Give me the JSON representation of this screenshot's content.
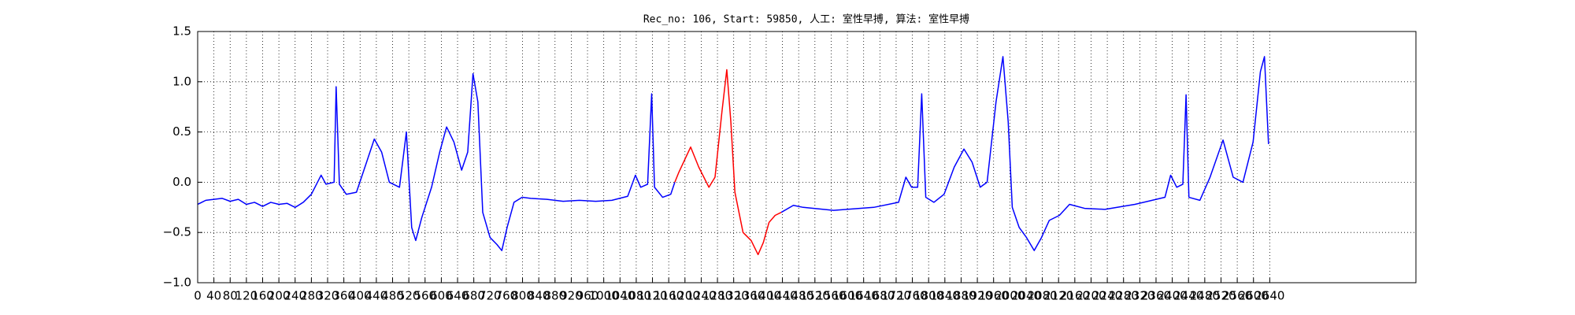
{
  "chart_data": {
    "type": "line",
    "title": "Rec_no: 106, Start: 59850, 人工: 室性早搏, 算法: 室性早搏",
    "x": [
      0,
      20,
      40,
      60,
      80,
      100,
      120,
      140,
      160,
      180,
      200,
      220,
      240,
      260,
      280,
      304,
      316,
      336,
      341,
      349,
      366,
      391,
      416,
      435,
      453,
      472,
      497,
      514,
      527,
      537,
      552,
      576,
      596,
      613,
      631,
      650,
      665,
      678,
      690,
      702,
      720,
      737,
      749,
      762,
      779,
      799,
      820,
      860,
      900,
      940,
      980,
      1020,
      1059,
      1078,
      1091,
      1108,
      1118,
      1125,
      1145,
      1165,
      1175,
      1185,
      1214,
      1234,
      1259,
      1274,
      1291,
      1303,
      1313,
      1323,
      1343,
      1363,
      1380,
      1393,
      1407,
      1422,
      1437,
      1467,
      1491,
      1566,
      1665,
      1726,
      1744,
      1758,
      1773,
      1783,
      1793,
      1813,
      1838,
      1863,
      1887,
      1907,
      1927,
      1944,
      1966,
      1983,
      1996,
      2006,
      2023,
      2041,
      2060,
      2078,
      2097,
      2122,
      2147,
      2184,
      2234,
      2308,
      2382,
      2396,
      2411,
      2426,
      2434,
      2441,
      2468,
      2493,
      2525,
      2550,
      2574,
      2599,
      2617,
      2627,
      2637
    ],
    "series": [
      {
        "color": "#0000ff",
        "values": [
          -0.22,
          -0.18,
          -0.17,
          -0.16,
          -0.19,
          -0.17,
          -0.22,
          -0.2,
          -0.24,
          -0.2,
          -0.22,
          -0.21,
          -0.25,
          -0.2,
          -0.12,
          0.07,
          -0.02,
          0,
          0.95,
          -0.02,
          -0.12,
          -0.1,
          0.2,
          0.43,
          0.3,
          0,
          -0.05,
          0.5,
          -0.45,
          -0.58,
          -0.35,
          -0.05,
          0.3,
          0.55,
          0.4,
          0.12,
          0.3,
          1.08,
          0.8,
          -0.3,
          -0.55,
          -0.62,
          -0.68,
          -0.45,
          -0.2,
          -0.15,
          -0.16,
          -0.17,
          -0.19,
          -0.18,
          -0.19,
          -0.18,
          -0.14,
          0.07,
          -0.05,
          -0.02,
          0.88,
          -0.05,
          -0.15,
          -0.12,
          0,
          null,
          null,
          null,
          null,
          null,
          null,
          null,
          null,
          null,
          null,
          null,
          null,
          null,
          null,
          null,
          -0.3,
          -0.23,
          -0.25,
          -0.28,
          -0.25,
          -0.2,
          0.05,
          -0.05,
          -0.05,
          0.88,
          -0.15,
          -0.2,
          -0.12,
          0.15,
          0.33,
          0.2,
          -0.05,
          0,
          0.8,
          1.25,
          0.6,
          -0.25,
          -0.45,
          -0.55,
          -0.68,
          -0.55,
          -0.38,
          -0.33,
          -0.22,
          -0.26,
          -0.27,
          -0.22,
          -0.15,
          0.07,
          -0.05,
          -0.02,
          0.87,
          -0.15,
          -0.18,
          0.05,
          0.42,
          0.05,
          0,
          0.4,
          1.1,
          1.25,
          0.38
        ]
      },
      {
        "color": "#ff0000",
        "values": [
          null,
          null,
          null,
          null,
          null,
          null,
          null,
          null,
          null,
          null,
          null,
          null,
          null,
          null,
          null,
          null,
          null,
          null,
          null,
          null,
          null,
          null,
          null,
          null,
          null,
          null,
          null,
          null,
          null,
          null,
          null,
          null,
          null,
          null,
          null,
          null,
          null,
          null,
          null,
          null,
          null,
          null,
          null,
          null,
          null,
          null,
          null,
          null,
          null,
          null,
          null,
          null,
          null,
          null,
          null,
          null,
          null,
          null,
          null,
          null,
          0,
          0.1,
          0.35,
          0.15,
          -0.05,
          0.05,
          0.7,
          1.12,
          0.6,
          -0.1,
          -0.5,
          -0.58,
          -0.72,
          -0.6,
          -0.4,
          -0.33,
          -0.3,
          null,
          null,
          null,
          null,
          null,
          null,
          null,
          null,
          null,
          null,
          null,
          null,
          null,
          null,
          null,
          null,
          null,
          null,
          null,
          null,
          null,
          null,
          null,
          null,
          null,
          null,
          null,
          null,
          null,
          null,
          null,
          null,
          null,
          null,
          null,
          null,
          null,
          null,
          null,
          null,
          null,
          null,
          null,
          null,
          null,
          null
        ]
      }
    ],
    "xlim": [
      0,
      3000
    ],
    "xticks": [
      0,
      40,
      80,
      120,
      160,
      200,
      240,
      280,
      320,
      360,
      400,
      440,
      480,
      520,
      560,
      600,
      640,
      680,
      720,
      760,
      800,
      840,
      880,
      920,
      960,
      1000,
      1040,
      1080,
      1120,
      1160,
      1200,
      1240,
      1280,
      1320,
      1360,
      1400,
      1440,
      1480,
      1520,
      1560,
      1600,
      1640,
      1680,
      1720,
      1760,
      1800,
      1840,
      1880,
      1920,
      1960,
      2000,
      2040,
      2080,
      2120,
      2160,
      2200,
      2240,
      2280,
      2320,
      2360,
      2400,
      2440,
      2480,
      2520,
      2560,
      2600,
      2640
    ],
    "ylim": [
      -1,
      1.5
    ],
    "yticks": [
      {
        "value": -1,
        "label": "−1.0"
      },
      {
        "value": -0.5,
        "label": "−0.5"
      },
      {
        "value": 0,
        "label": "0.0"
      },
      {
        "value": 0.5,
        "label": "0.5"
      },
      {
        "value": 1,
        "label": "1.0"
      },
      {
        "value": 1.5,
        "label": "1.5"
      }
    ],
    "grid": true
  }
}
